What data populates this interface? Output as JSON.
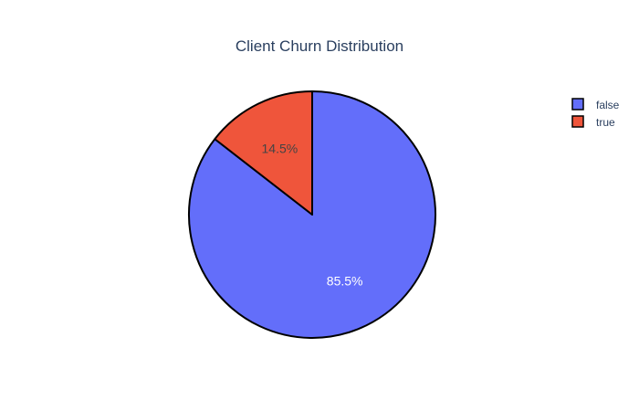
{
  "chart_data": {
    "type": "pie",
    "title": "Client Churn Distribution",
    "categories": [
      "false",
      "true"
    ],
    "values": [
      85.5,
      14.5
    ],
    "labels": [
      "85.5%",
      "14.5%"
    ],
    "colors": [
      "#636efa",
      "#ef553b"
    ],
    "label_colors": [
      "#ffffff",
      "#444444"
    ],
    "slice_outline_color": "#000000",
    "legend_placement": "top-right",
    "legend": [
      {
        "label": "false",
        "color": "#636efa"
      },
      {
        "label": "true",
        "color": "#ef553b"
      }
    ]
  }
}
